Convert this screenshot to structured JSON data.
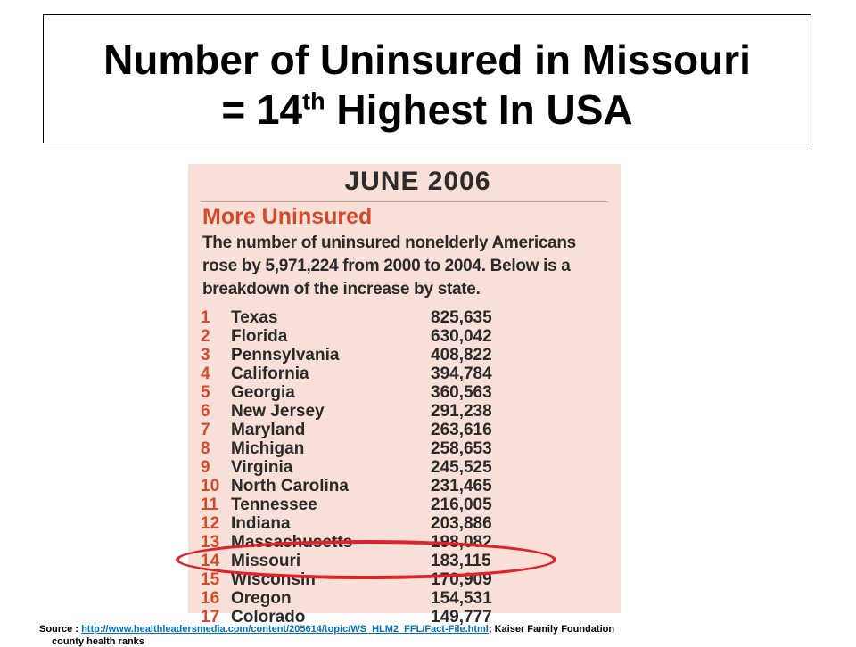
{
  "title": {
    "line1": "Number of Uninsured in Missouri",
    "line2_prefix": "= 14",
    "line2_sup": "th",
    "line2_suffix": " Highest In USA"
  },
  "clipping": {
    "header": "JUNE 2006",
    "heading": "More Uninsured",
    "intro": "The number of uninsured nonelderly Americans rose by 5,971,224 from 2000 to 2004. Below is a breakdown of the increase by state.",
    "rows": [
      {
        "rank": "1",
        "state": "Texas",
        "count": "825,635"
      },
      {
        "rank": "2",
        "state": "Florida",
        "count": "630,042"
      },
      {
        "rank": "3",
        "state": "Pennsylvania",
        "count": "408,822"
      },
      {
        "rank": "4",
        "state": "California",
        "count": "394,784"
      },
      {
        "rank": "5",
        "state": "Georgia",
        "count": "360,563"
      },
      {
        "rank": "6",
        "state": "New Jersey",
        "count": "291,238"
      },
      {
        "rank": "7",
        "state": "Maryland",
        "count": "263,616"
      },
      {
        "rank": "8",
        "state": "Michigan",
        "count": "258,653"
      },
      {
        "rank": "9",
        "state": "Virginia",
        "count": "245,525"
      },
      {
        "rank": "10",
        "state": "North Carolina",
        "count": "231,465"
      },
      {
        "rank": "11",
        "state": "Tennessee",
        "count": "216,005"
      },
      {
        "rank": "12",
        "state": "Indiana",
        "count": "203,886"
      },
      {
        "rank": "13",
        "state": "Massachusetts",
        "count": "198,082"
      },
      {
        "rank": "14",
        "state": "Missouri",
        "count": "183,115"
      },
      {
        "rank": "15",
        "state": "Wisconsin",
        "count": "170,909"
      },
      {
        "rank": "16",
        "state": "Oregon",
        "count": "154,531"
      },
      {
        "rank": "17",
        "state": "Colorado",
        "count": "149,777"
      }
    ]
  },
  "source": {
    "prefix": "Source : ",
    "link": "http://www.healthleadersmedia.com/content/205614/topic/WS_HLM2_FFL/Fact-File.html",
    "suffix": ";  Kaiser Family Foundation",
    "line2": "county health ranks"
  },
  "colors": {
    "accent_red": "#d24a2a",
    "highlight_ellipse": "#e0202a",
    "clipping_background": "#f8e0d8",
    "link": "#0070c0"
  }
}
